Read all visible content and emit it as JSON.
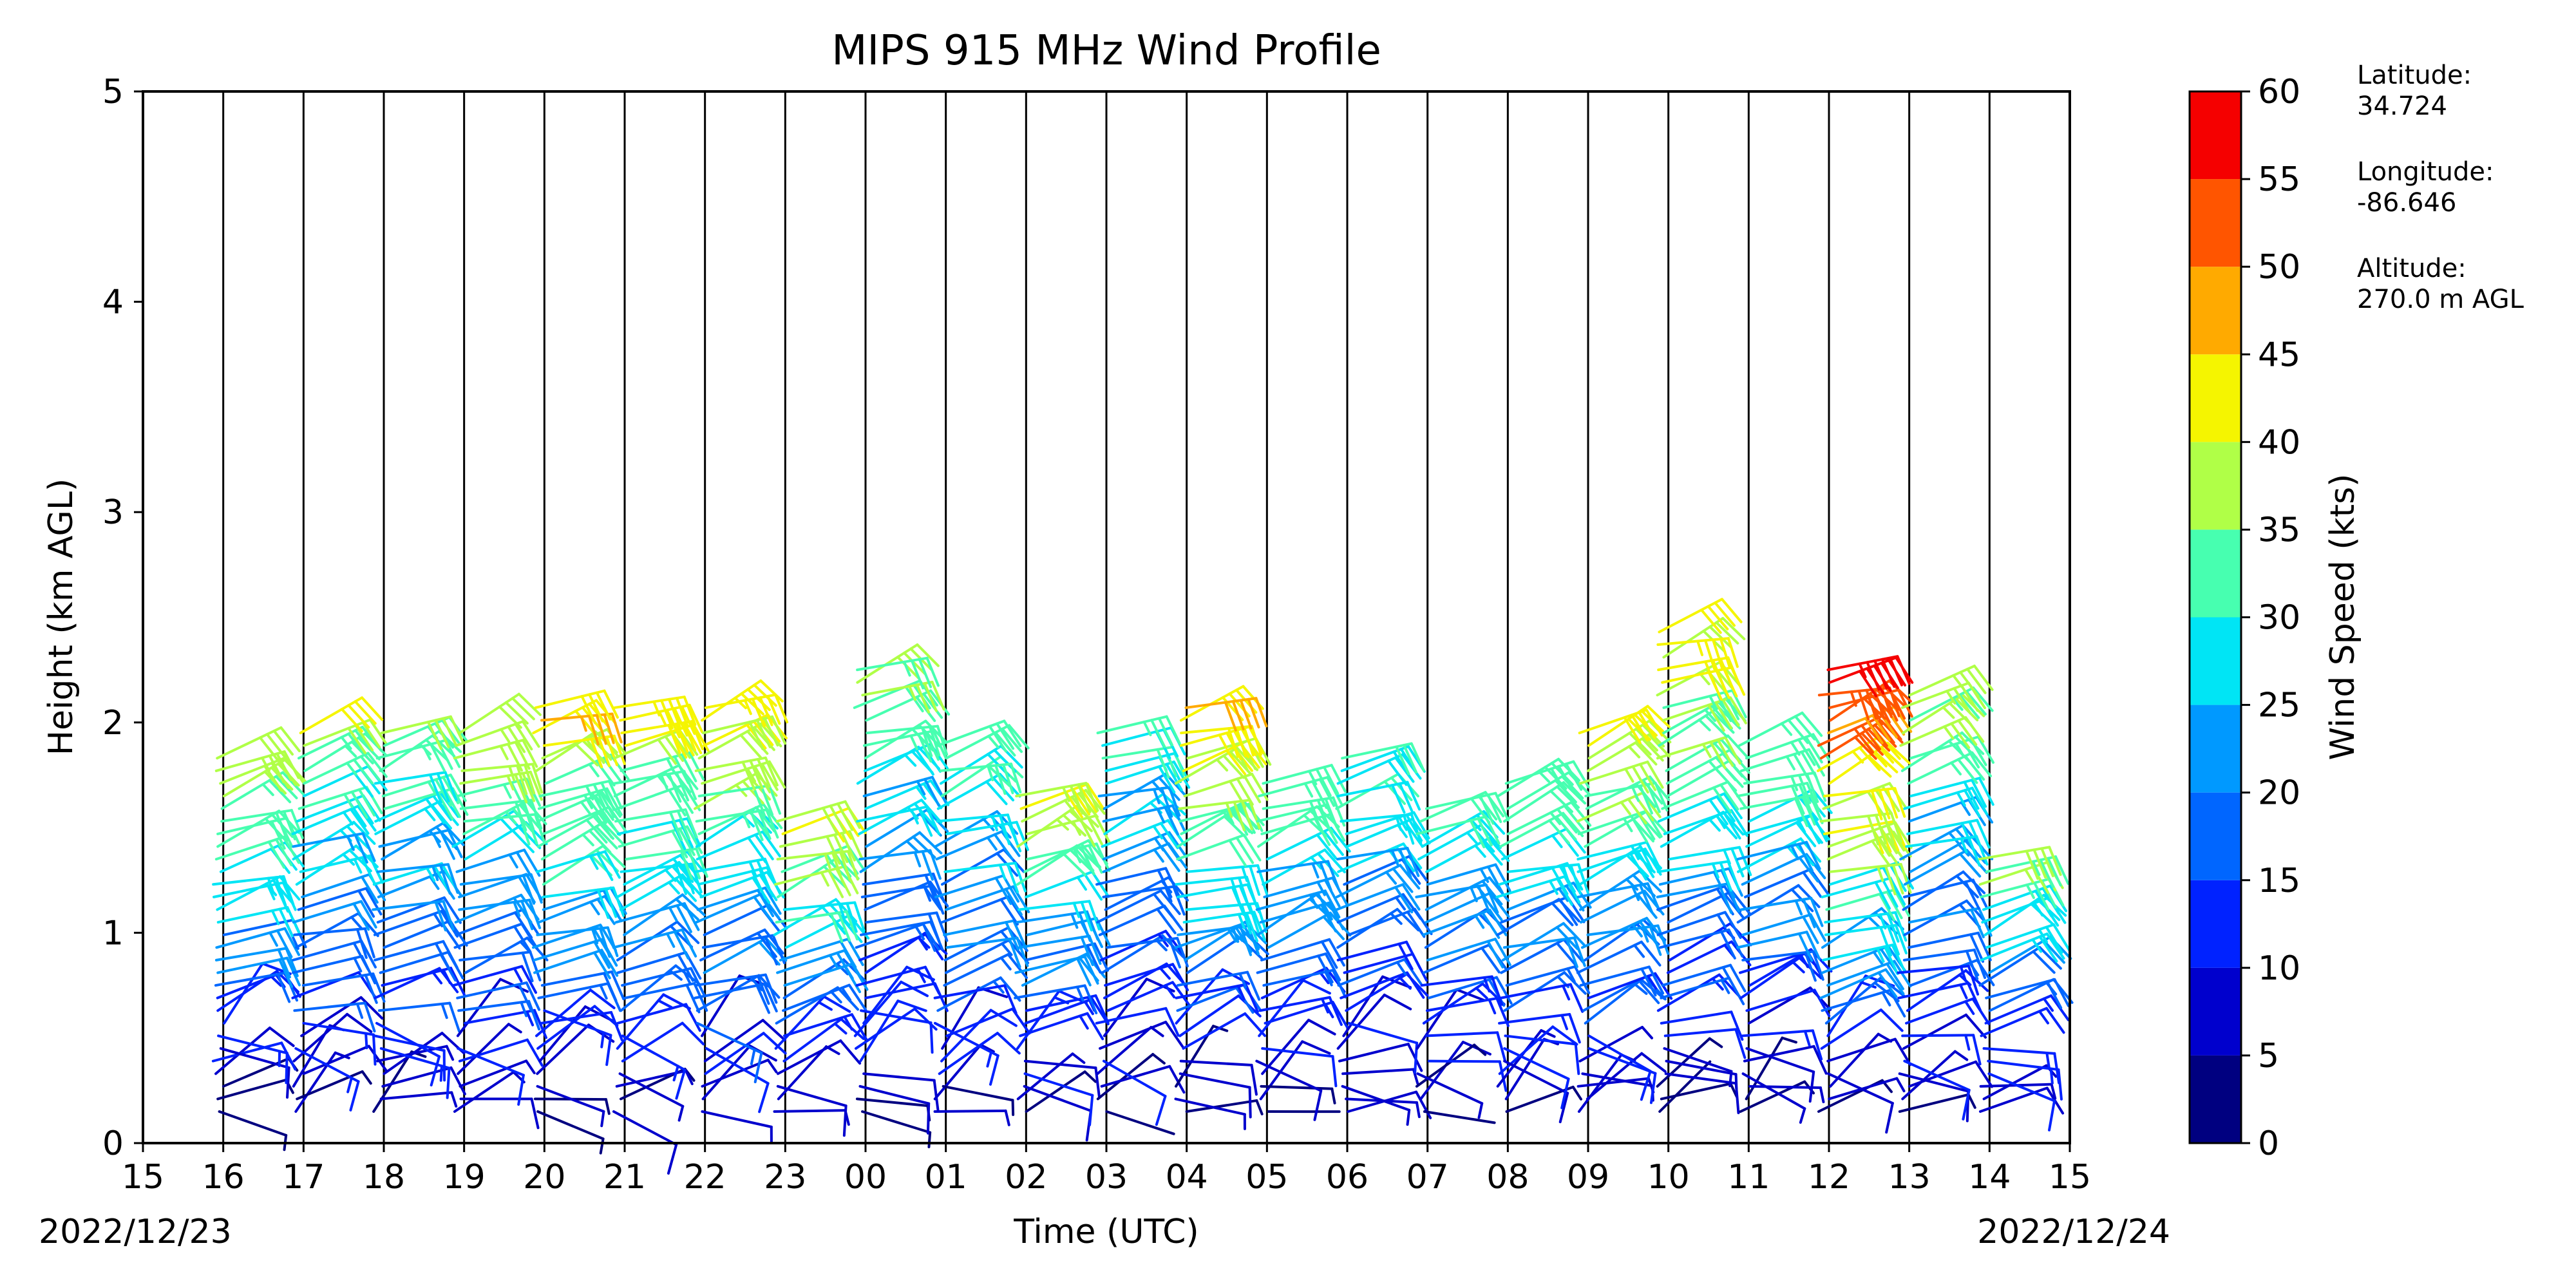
{
  "chart_data": {
    "type": "wind-barb profile",
    "title": "MIPS 915 MHz Wind Profile",
    "xlabel": "Time (UTC)",
    "ylabel": "Height (km AGL)",
    "x_tick_labels": [
      "15",
      "16",
      "17",
      "18",
      "19",
      "20",
      "21",
      "22",
      "23",
      "00",
      "01",
      "02",
      "03",
      "04",
      "05",
      "06",
      "07",
      "08",
      "09",
      "10",
      "11",
      "12",
      "13",
      "14",
      "15"
    ],
    "date_start_label": "2022/12/23",
    "date_end_label": "2022/12/24",
    "ylim": [
      0,
      5
    ],
    "y_ticks": [
      0,
      1,
      2,
      3,
      4,
      5
    ],
    "grid": "vertical lines at every hour",
    "colorbar": {
      "label": "Wind Speed (kts)",
      "ticks": [
        0,
        5,
        10,
        15,
        20,
        25,
        30,
        35,
        40,
        45,
        50,
        55,
        60
      ],
      "colors": [
        "#000080",
        "#0000CD",
        "#0022FF",
        "#0066FF",
        "#0099FF",
        "#00E5F5",
        "#47FFB0",
        "#B0FF47",
        "#F5F500",
        "#FFAA00",
        "#FF5500",
        "#F50000",
        "#800000"
      ]
    },
    "station_info": [
      {
        "label": "Latitude:",
        "value": "34.724"
      },
      {
        "label": "Longitude:",
        "value": "-86.646"
      },
      {
        "label": "Altitude:",
        "value": "270.0 m AGL"
      }
    ],
    "profiles": [
      {
        "time": "15:30",
        "top_km": 1.85,
        "max_kts": 40
      },
      {
        "time": "16:30",
        "top_km": 2.0,
        "max_kts": 38
      },
      {
        "time": "17:30",
        "top_km": 1.95,
        "max_kts": 36
      },
      {
        "time": "18:30",
        "top_km": 2.0,
        "max_kts": 40
      },
      {
        "time": "19:30",
        "top_km": 2.1,
        "max_kts": 46
      },
      {
        "time": "20:30",
        "top_km": 2.1,
        "max_kts": 44
      },
      {
        "time": "21:30",
        "top_km": 2.1,
        "max_kts": 44
      },
      {
        "time": "22:30",
        "top_km": 1.55,
        "max_kts": 42
      },
      {
        "time": "23:30",
        "top_km": 2.25,
        "max_kts": 36
      },
      {
        "time": "00:30",
        "top_km": 1.9,
        "max_kts": 34
      },
      {
        "time": "01:30",
        "top_km": 1.65,
        "max_kts": 40
      },
      {
        "time": "02:30",
        "top_km": 2.0,
        "max_kts": 32
      },
      {
        "time": "03:30",
        "top_km": 2.1,
        "max_kts": 46
      },
      {
        "time": "04:30",
        "top_km": 1.75,
        "max_kts": 36
      },
      {
        "time": "05:30",
        "top_km": 1.85,
        "max_kts": 32
      },
      {
        "time": "06:30",
        "top_km": 1.6,
        "max_kts": 32
      },
      {
        "time": "07:30",
        "top_km": 1.75,
        "max_kts": 36
      },
      {
        "time": "08:30",
        "top_km": 2.0,
        "max_kts": 42
      },
      {
        "time": "09:30",
        "top_km": 2.45,
        "max_kts": 44
      },
      {
        "time": "10:30",
        "top_km": 1.9,
        "max_kts": 34
      },
      {
        "time": "11:30",
        "top_km": 2.25,
        "max_kts": 58
      },
      {
        "time": "12:30",
        "top_km": 2.15,
        "max_kts": 38
      },
      {
        "time": "13:30",
        "top_km": 1.4,
        "max_kts": 38
      }
    ]
  }
}
